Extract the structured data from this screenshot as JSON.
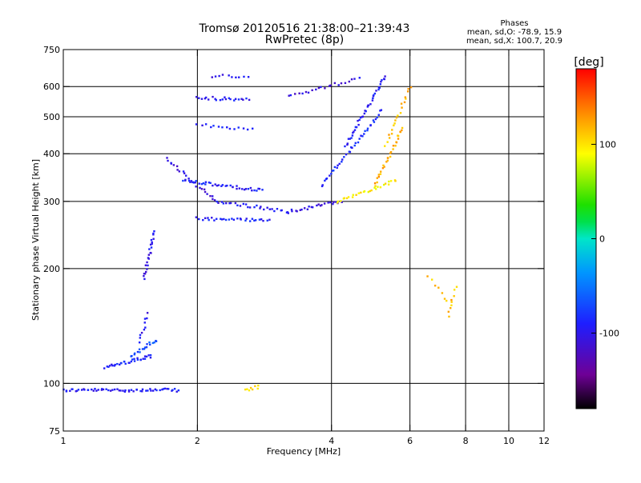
{
  "chart_data": {
    "type": "scatter",
    "title": "Tromsø 20120516 21:38:00–21:39:43",
    "subtitle": "RwPretec (8p)",
    "xlabel": "Frequency [MHz]",
    "ylabel": "Stationary phase Virtual Height [km]",
    "x_scale": "log",
    "y_scale": "log",
    "xlim": [
      1,
      12
    ],
    "ylim": [
      75,
      750
    ],
    "x_ticks": [
      1,
      2,
      4,
      6,
      8,
      10,
      12
    ],
    "y_ticks": [
      75,
      100,
      200,
      300,
      400,
      500,
      600,
      750
    ],
    "x_grid": [
      2,
      4,
      6,
      8,
      10
    ],
    "y_grid": [
      100,
      200,
      300,
      400,
      500,
      600
    ],
    "grid": true,
    "stats": {
      "header": "Phases",
      "line_o": "mean, sd,O: -78.9, 15.9",
      "line_x": "mean, sd,X: 100.7, 20.9"
    },
    "colorbar": {
      "label": "[deg]",
      "range": [
        -180,
        180
      ],
      "ticks": [
        100,
        0,
        -100
      ],
      "position": "right"
    },
    "traces": [
      {
        "x": [
          1.0,
          1.82
        ],
        "y": [
          96,
          96
        ],
        "phase": -95,
        "n": 60
      },
      {
        "x": [
          1.24,
          1.58
        ],
        "y": [
          110,
          118
        ],
        "phase": -90,
        "n": 32
      },
      {
        "x": [
          1.42,
          1.62
        ],
        "y": [
          118,
          130
        ],
        "phase": -70,
        "n": 18
      },
      {
        "x": [
          1.48,
          1.55
        ],
        "y": [
          128,
          152
        ],
        "phase": -100,
        "n": 10
      },
      {
        "x": [
          1.52,
          1.6
        ],
        "y": [
          188,
          250
        ],
        "phase": -100,
        "n": 24
      },
      {
        "x": [
          1.7,
          2.2
        ],
        "y": [
          390,
          300
        ],
        "phase": -105,
        "n": 25
      },
      {
        "x": [
          2.2,
          3.2
        ],
        "y": [
          300,
          282
        ],
        "phase": -95,
        "n": 28
      },
      {
        "x": [
          3.2,
          4.2
        ],
        "y": [
          282,
          300
        ],
        "phase": -110,
        "n": 24
      },
      {
        "x": [
          1.85,
          2.8
        ],
        "y": [
          340,
          320
        ],
        "phase": -90,
        "n": 40
      },
      {
        "x": [
          2.0,
          2.9
        ],
        "y": [
          270,
          268
        ],
        "phase": -90,
        "n": 30
      },
      {
        "x": [
          2.0,
          2.6
        ],
        "y": [
          560,
          555
        ],
        "phase": -95,
        "n": 22
      },
      {
        "x": [
          2.15,
          2.6
        ],
        "y": [
          640,
          635
        ],
        "phase": -100,
        "n": 10
      },
      {
        "x": [
          2.0,
          2.65
        ],
        "y": [
          475,
          465
        ],
        "phase": -90,
        "n": 14
      },
      {
        "x": [
          3.2,
          4.6
        ],
        "y": [
          565,
          630
        ],
        "phase": -105,
        "n": 22
      },
      {
        "x": [
          4.1,
          5.6
        ],
        "y": [
          300,
          340
        ],
        "phase": 95,
        "n": 28
      },
      {
        "x": [
          5.0,
          5.8
        ],
        "y": [
          330,
          470
        ],
        "phase": 120,
        "n": 30
      },
      {
        "x": [
          5.3,
          6.0
        ],
        "y": [
          420,
          600
        ],
        "phase": 115,
        "n": 20
      },
      {
        "x": [
          3.8,
          5.2
        ],
        "y": [
          330,
          520
        ],
        "phase": -85,
        "n": 40
      },
      {
        "x": [
          4.3,
          5.3
        ],
        "y": [
          420,
          640
        ],
        "phase": -95,
        "n": 40
      },
      {
        "x": [
          2.55,
          2.75
        ],
        "y": [
          96,
          98
        ],
        "phase": 110,
        "n": 8
      },
      {
        "x": [
          6.6,
          7.4
        ],
        "y": [
          190,
          160
        ],
        "phase": 110,
        "n": 8
      },
      {
        "x": [
          7.3,
          7.6
        ],
        "y": [
          150,
          180
        ],
        "phase": 115,
        "n": 8
      }
    ]
  }
}
